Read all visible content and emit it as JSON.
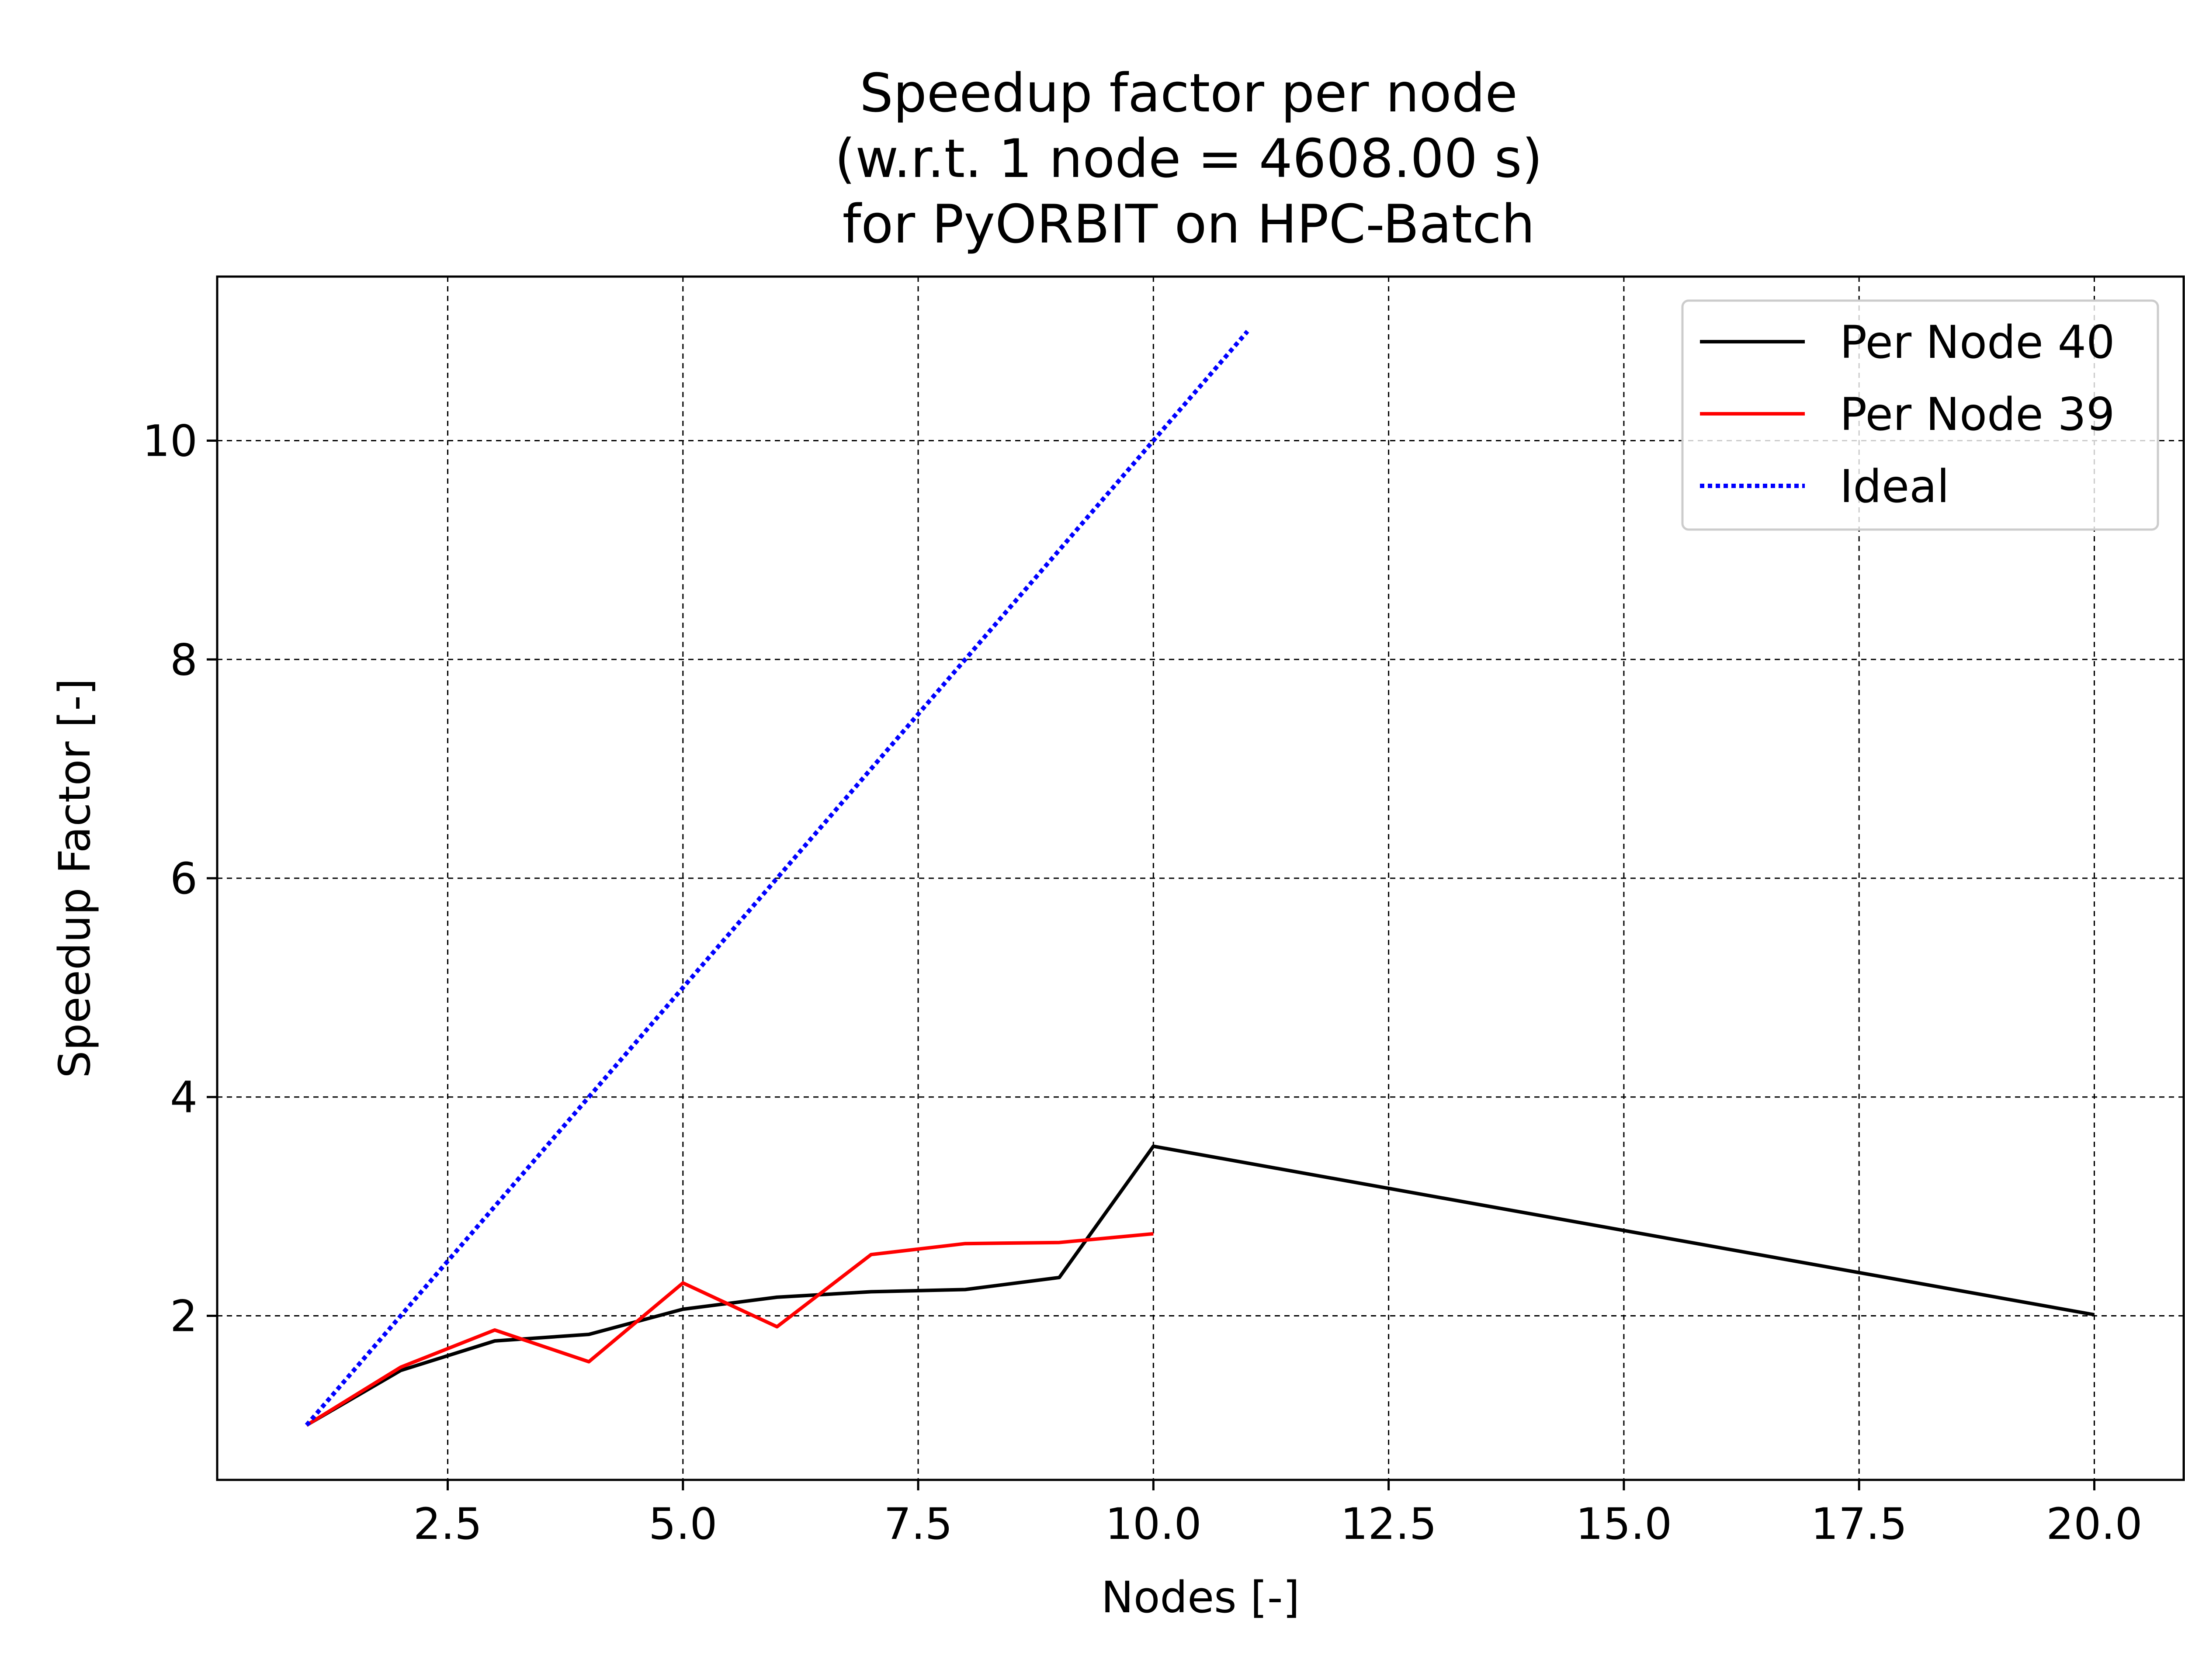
{
  "chart_data": {
    "type": "line",
    "title": [
      "Speedup factor per node",
      "(w.r.t. 1 node = 4608.00 s)",
      "for PyORBIT on HPC-Batch"
    ],
    "xlabel": "Nodes [-]",
    "ylabel": "Speedup Factor [-]",
    "xlim": [
      0.05,
      20.95
    ],
    "ylim": [
      0.5,
      11.5
    ],
    "xticks": [
      2.5,
      5.0,
      7.5,
      10.0,
      12.5,
      15.0,
      17.5,
      20.0
    ],
    "xtick_labels": [
      "2.5",
      "5.0",
      "7.5",
      "10.0",
      "12.5",
      "15.0",
      "17.5",
      "20.0"
    ],
    "yticks": [
      2,
      4,
      6,
      8,
      10
    ],
    "ytick_labels": [
      "2",
      "4",
      "6",
      "8",
      "10"
    ],
    "grid": true,
    "grid_style": "dashed",
    "legend_position": "top-right",
    "series": [
      {
        "name": "Per Node 40",
        "color": "#000000",
        "style": "solid",
        "x": [
          1,
          2,
          3,
          4,
          5,
          6,
          7,
          8,
          9,
          10,
          20
        ],
        "y": [
          1.0,
          1.5,
          1.77,
          1.83,
          2.06,
          2.17,
          2.22,
          2.24,
          2.35,
          3.55,
          2.01
        ]
      },
      {
        "name": "Per Node 39",
        "color": "#ff0000",
        "style": "solid",
        "x": [
          1,
          2,
          3,
          4,
          5,
          6,
          7,
          8,
          9,
          10
        ],
        "y": [
          1.0,
          1.53,
          1.87,
          1.58,
          2.3,
          1.9,
          2.56,
          2.66,
          2.67,
          2.75
        ]
      },
      {
        "name": "Ideal",
        "color": "#0000ff",
        "style": "dotted",
        "x": [
          1,
          2,
          3,
          4,
          5,
          6,
          7,
          8,
          9,
          10,
          11
        ],
        "y": [
          1,
          2,
          3,
          4,
          5,
          6,
          7,
          8,
          9,
          10,
          11
        ]
      }
    ]
  }
}
